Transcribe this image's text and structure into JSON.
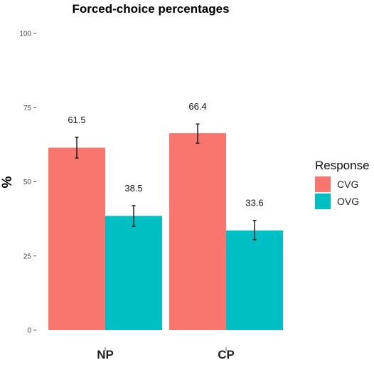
{
  "chart_data": {
    "type": "bar",
    "title": "Forced-choice percentages",
    "xlabel": "",
    "ylabel": "%",
    "ylim": [
      0,
      100
    ],
    "yticks": [
      0,
      25,
      50,
      75,
      100
    ],
    "categories": [
      "NP",
      "CP"
    ],
    "series": [
      {
        "name": "CVG",
        "color": "#F8766D",
        "values": [
          61.5,
          66.4
        ],
        "error_low": [
          58.0,
          63.0
        ],
        "error_high": [
          65.0,
          69.5
        ],
        "labels": [
          "61.5",
          "66.4"
        ]
      },
      {
        "name": "OVG",
        "color": "#00BFC4",
        "values": [
          38.5,
          33.6
        ],
        "error_low": [
          35.0,
          30.5
        ],
        "error_high": [
          42.0,
          37.0
        ],
        "labels": [
          "38.5",
          "33.6"
        ]
      }
    ],
    "legend": {
      "title": "Response",
      "position": "right"
    },
    "grid": false
  }
}
